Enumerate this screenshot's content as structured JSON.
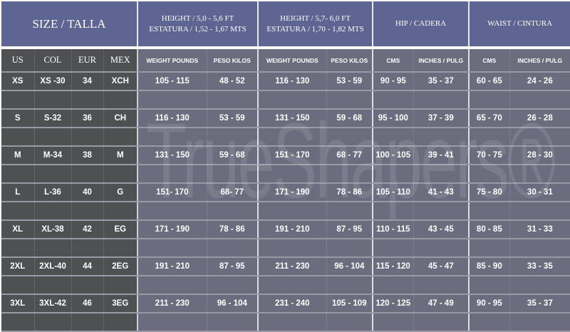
{
  "header": {
    "size": "SIZE / TALLA",
    "height1_line1": "HEIGHT / 5,0 - 5,6 FT",
    "height1_line2": "ESTATURA / 1,52 - 1,67 MTS",
    "height2_line1": "HEIGHT / 5,7- 6,0 FT",
    "height2_line2": "ESTATURA / 1,70 - 1,82 MTS",
    "hip": "HIP / CADERA",
    "waist": "WAIST / CINTURA"
  },
  "subheader": [
    "US",
    "COL",
    "EUR",
    "MEX",
    "WEIGHT POUNDS",
    "PESO KILOS",
    "WEIGHT POUNDS",
    "PESO KILOS",
    "CMS",
    "INCHES / PULG",
    "CMS",
    "INCHES / PULG"
  ],
  "rows": [
    [
      "XS",
      "XS -30",
      "34",
      "XCH",
      "105 - 115",
      "48 - 52",
      "116 - 130",
      "53 - 59",
      "90 - 95",
      "35 - 37",
      "60 - 65",
      "24 - 26"
    ],
    [
      "S",
      "S-32",
      "36",
      "CH",
      "116 - 130",
      "53 - 59",
      "131 - 150",
      "59 - 68",
      "95 - 100",
      "37 - 39",
      "65 - 70",
      "26 - 28"
    ],
    [
      "M",
      "M-34",
      "38",
      "M",
      "131 - 150",
      "59 - 68",
      "151 - 170",
      "68 - 77",
      "100 - 105",
      "39 - 41",
      "70 - 75",
      "28 - 30"
    ],
    [
      "L",
      "L-36",
      "40",
      "G",
      "151- 170",
      "68- 77",
      "171 - 190",
      "78 - 86",
      "105 - 110",
      "41 - 43",
      "75 - 80",
      "30 - 31"
    ],
    [
      "XL",
      "XL-38",
      "42",
      "EG",
      "171 - 190",
      "78 - 86",
      "191 - 210",
      "87 - 95",
      "110 - 115",
      "43 - 45",
      "80 - 85",
      "31 - 33"
    ],
    [
      "2XL",
      "2XL-40",
      "44",
      "2EG",
      "191 - 210",
      "87 - 95",
      "211 - 230",
      "96 - 104",
      "115 - 120",
      "45 - 47",
      "85 - 90",
      "33 - 35"
    ],
    [
      "3XL",
      "3XL-42",
      "46",
      "3EG",
      "211 - 230",
      "96 - 104",
      "231 - 240",
      "105 - 109",
      "120 - 125",
      "47 - 49",
      "90 - 95",
      "35 - 37"
    ]
  ],
  "watermark": "TrueShapers®",
  "colors": {
    "header": "#5e6593",
    "left": "#4f5052",
    "body": "#6b6c7e"
  }
}
